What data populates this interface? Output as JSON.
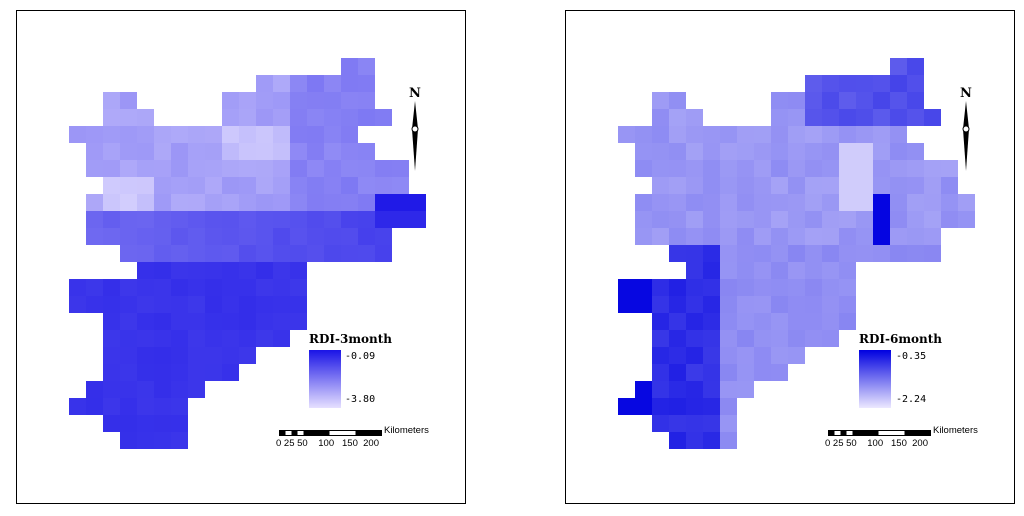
{
  "panels": [
    {
      "id": "left",
      "legend": {
        "title": "RDI-3month",
        "max_label": "-0.09",
        "min_label": "-3.80",
        "color_high": "#1a14e6",
        "color_low": "#e6e0ff"
      },
      "scalebar": {
        "ticks": "0 25 50    100   150  200",
        "unit": "Kilometers"
      },
      "north_label": "N",
      "pattern": "dry-southwest"
    },
    {
      "id": "right",
      "legend": {
        "title": "RDI-6month",
        "max_label": "-0.35",
        "min_label": "-2.24",
        "color_high": "#0000e0",
        "color_low": "#ece8ff"
      },
      "scalebar": {
        "ticks": "0 25 50    100   150  200",
        "unit": "Kilometers"
      },
      "north_label": "N",
      "pattern": "mixed"
    }
  ]
}
